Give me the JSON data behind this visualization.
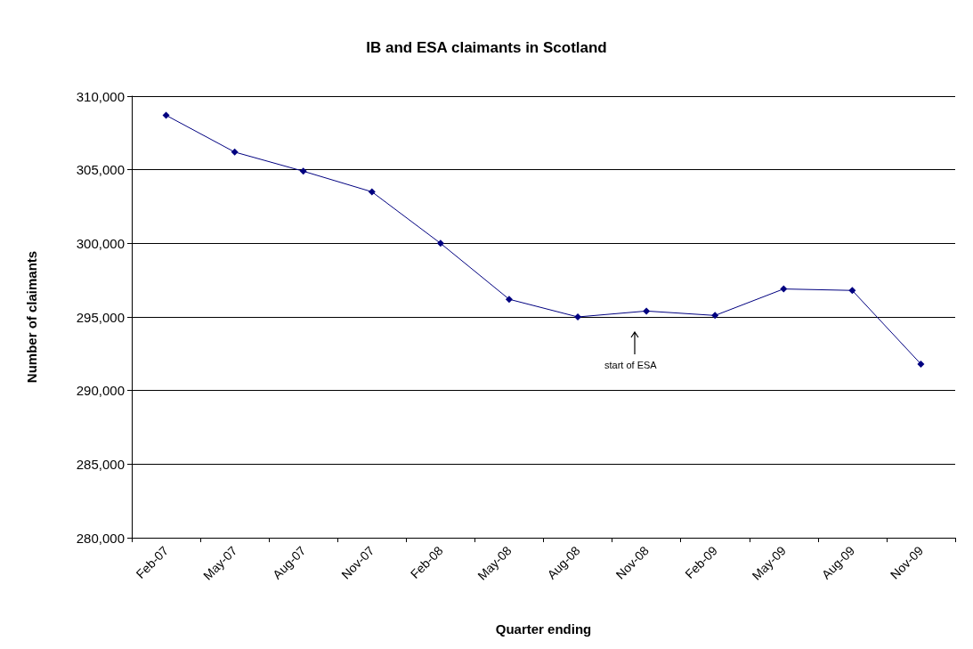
{
  "chart_data": {
    "type": "line",
    "title": "IB and ESA claimants in Scotland",
    "xlabel": "Quarter ending",
    "ylabel": "Number of claimants",
    "categories": [
      "Feb-07",
      "May-07",
      "Aug-07",
      "Nov-07",
      "Feb-08",
      "May-08",
      "Aug-08",
      "Nov-08",
      "Feb-09",
      "May-09",
      "Aug-09",
      "Nov-09"
    ],
    "series": [
      {
        "color": "#000080",
        "values": [
          308700,
          306200,
          304900,
          303500,
          300000,
          296200,
          295000,
          295400,
          295100,
          296900,
          296800,
          291800
        ]
      }
    ],
    "ylim": [
      280000,
      310000
    ],
    "yticks": [
      {
        "value": 280000,
        "label": "280,000"
      },
      {
        "value": 285000,
        "label": "285,000"
      },
      {
        "value": 290000,
        "label": "290,000"
      },
      {
        "value": 295000,
        "label": "295,000"
      },
      {
        "value": 300000,
        "label": "300,000"
      },
      {
        "value": 305000,
        "label": "305,000"
      },
      {
        "value": 310000,
        "label": "310,000"
      }
    ],
    "grid": "y",
    "marker": "diamond",
    "line_style": "solid",
    "annotations": [
      "start of ESA"
    ]
  }
}
